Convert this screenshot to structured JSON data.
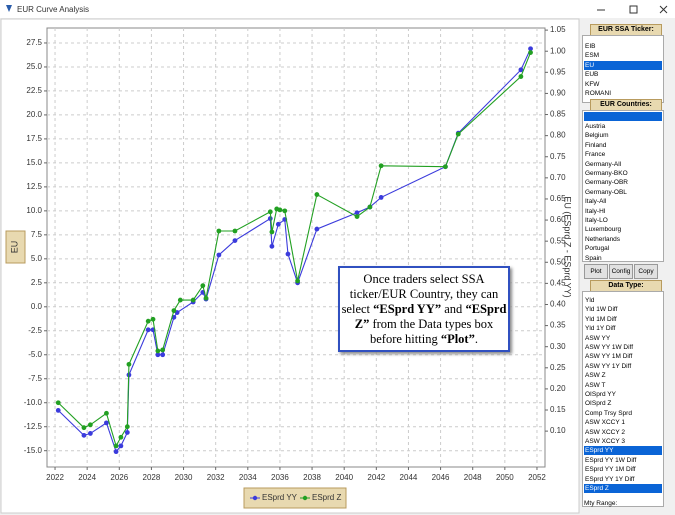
{
  "window": {
    "title": "EUR Curve Analysis"
  },
  "chart_data": {
    "type": "line",
    "y_label": "EU",
    "y2_label": "EU (ESprd Z - ESprd YY)",
    "xlim": [
      2021.5,
      2052.5
    ],
    "xticks": [
      2022,
      2024,
      2026,
      2028,
      2030,
      2032,
      2034,
      2036,
      2038,
      2040,
      2042,
      2044,
      2046,
      2048,
      2050,
      2052
    ],
    "ylim": [
      -16.7,
      29.06
    ],
    "yticks": [
      {
        "value": -15,
        "label": "-15.0"
      },
      -12.5,
      {
        "value": -10,
        "label": "-10.0"
      },
      -7.5,
      {
        "value": -5,
        "label": "-5.0"
      },
      -2.5,
      {
        "value": 0,
        "label": "0.0"
      },
      2.5,
      {
        "value": 5,
        "label": "5.0"
      },
      7.5,
      {
        "value": 10,
        "label": "10.0"
      },
      12.5,
      {
        "value": 15,
        "label": "15.0"
      },
      17.5,
      {
        "value": 20,
        "label": "20.0"
      },
      22.5,
      {
        "value": 25,
        "label": "25.0"
      },
      27.5
    ],
    "y2lim": [
      0.015,
      1.055
    ],
    "y2ticks": [
      {
        "value": 0.1,
        "label": "0.10"
      },
      0.15,
      {
        "value": 0.2,
        "label": "0.20"
      },
      0.25,
      {
        "value": 0.3,
        "label": "0.30"
      },
      0.35,
      {
        "value": 0.4,
        "label": "0.40"
      },
      0.45,
      {
        "value": 0.5,
        "label": "0.50"
      },
      0.55,
      {
        "value": 0.6,
        "label": "0.60"
      },
      0.65,
      {
        "value": 0.7,
        "label": "0.70"
      },
      0.75,
      {
        "value": 0.8,
        "label": "0.80"
      },
      0.85,
      {
        "value": 0.9,
        "label": "0.90"
      },
      0.95,
      {
        "value": 1,
        "label": "1.00"
      },
      1.05
    ],
    "grid": true,
    "legend": "bottom",
    "series": [
      {
        "name": "ESprd YY",
        "color": "#3b3bdc",
        "x": [
          2022.2,
          2023.8,
          2024.2,
          2025.2,
          2025.8,
          2026.1,
          2026.5,
          2026.6,
          2027.8,
          2028.1,
          2028.4,
          2028.7,
          2029.4,
          2029.6,
          2030.6,
          2031.2,
          2031.4,
          2032.2,
          2033.2,
          2035.4,
          2035.5,
          2035.9,
          2036.3,
          2036.5,
          2037.1,
          2038.3,
          2040.8,
          2041.6,
          2042.3,
          2046.3,
          2047.1,
          2051.0,
          2051.6
        ],
        "values": [
          -10.8,
          -13.4,
          -13.2,
          -12.1,
          -15.1,
          -14.5,
          -13.1,
          -7.1,
          -2.4,
          -2.4,
          -5.0,
          -5.0,
          -1.1,
          -0.6,
          0.5,
          1.5,
          0.8,
          5.4,
          6.9,
          9.2,
          6.3,
          8.6,
          9.1,
          5.5,
          2.5,
          8.1,
          9.8,
          10.4,
          11.4,
          14.6,
          18.1,
          24.7,
          26.9
        ]
      },
      {
        "name": "ESprd Z",
        "color": "#22a022",
        "x": [
          2022.2,
          2023.8,
          2024.2,
          2025.2,
          2025.8,
          2026.1,
          2026.5,
          2026.6,
          2027.8,
          2028.1,
          2028.4,
          2028.7,
          2029.4,
          2029.8,
          2030.6,
          2031.2,
          2031.4,
          2032.2,
          2033.2,
          2035.4,
          2035.5,
          2035.8,
          2036.0,
          2036.3,
          2037.1,
          2038.3,
          2040.8,
          2041.6,
          2042.3,
          2046.3,
          2047.1,
          2051.0,
          2051.6
        ],
        "values": [
          -10.0,
          -12.6,
          -12.3,
          -11.1,
          -14.5,
          -13.6,
          -12.5,
          -6.0,
          -1.5,
          -1.3,
          -4.6,
          -4.5,
          -0.4,
          0.7,
          0.7,
          2.2,
          0.9,
          7.9,
          7.9,
          9.9,
          7.8,
          10.2,
          10.1,
          10.0,
          2.7,
          11.7,
          9.4,
          10.4,
          14.7,
          14.6,
          18.0,
          24.0,
          26.5
        ]
      }
    ],
    "annotation": [
      "Once traders select SSA ticker/EUR Country, they can select ",
      "“ESprd YY”",
      " and ",
      "“ESprd Z”",
      " from the Data types box before hitting ",
      "“Plot”",
      "."
    ]
  },
  "panel": {
    "ticker": {
      "header": "EUR SSA Ticker:",
      "items": [
        "EIB",
        "ESM",
        "EU",
        "EUB",
        "KFW",
        "ROMANI"
      ],
      "selected": [
        2
      ]
    },
    "countries": {
      "header": "EUR Countries:",
      "items": [
        "Austria",
        "Belgium",
        "Finland",
        "France",
        "Germany-All",
        "Germany-BKO",
        "Germany-OBR",
        "Germany-OBL",
        "Italy-All",
        "Italy-HI",
        "Italy-LO",
        "Luxembourg",
        "Netherlands",
        "Portugal",
        "Spain"
      ]
    },
    "buttons": [
      "Plot",
      "Config",
      "Copy"
    ],
    "data_types": {
      "header": "Data Type:",
      "items": [
        "Yld",
        "Yld 1W Diff",
        "Yld 1M Diff",
        "Yld 1Y Diff",
        "ASW YY",
        "ASW YY 1W Diff",
        "ASW YY 1M Diff",
        "ASW YY 1Y Diff",
        "ASW Z",
        "ASW T",
        "OISprd YY",
        "OISprd Z",
        "Comp Trsy Sprd",
        "ASW XCCY 1",
        "ASW XCCY 2",
        "ASW XCCY 3",
        "ESprd YY",
        "ESprd YY 1W Diff",
        "ESprd YY 1M Diff",
        "ESprd YY 1Y Diff",
        "ESprd Z"
      ],
      "selected": [
        16,
        20
      ]
    },
    "maturity_label": "Mty Range:"
  }
}
